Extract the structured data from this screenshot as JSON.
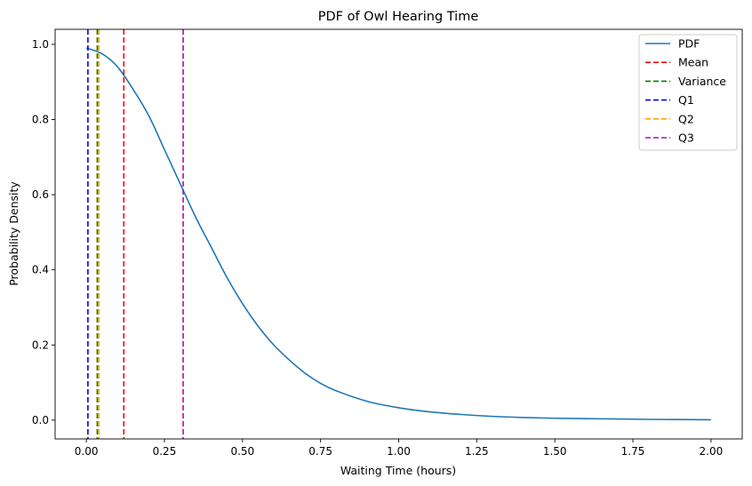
{
  "chart_data": {
    "type": "line",
    "title": "PDF of Owl Hearing Time",
    "xlabel": "Waiting Time (hours)",
    "ylabel": "Probability Density",
    "xlim": [
      -0.1,
      2.1
    ],
    "ylim": [
      -0.05,
      1.04
    ],
    "xticks": [
      0.0,
      0.25,
      0.5,
      0.75,
      1.0,
      1.25,
      1.5,
      1.75,
      2.0
    ],
    "xtick_labels": [
      "0.00",
      "0.25",
      "0.50",
      "0.75",
      "1.00",
      "1.25",
      "1.50",
      "1.75",
      "2.00"
    ],
    "yticks": [
      0.0,
      0.2,
      0.4,
      0.6,
      0.8,
      1.0
    ],
    "ytick_labels": [
      "0.0",
      "0.2",
      "0.4",
      "0.6",
      "0.8",
      "1.0"
    ],
    "grid": false,
    "legend_position": "top-right",
    "series": [
      {
        "name": "PDF",
        "color": "#1f77b4",
        "style": "solid",
        "x": [
          0.0,
          0.05,
          0.1,
          0.15,
          0.2,
          0.25,
          0.3,
          0.35,
          0.4,
          0.45,
          0.5,
          0.55,
          0.6,
          0.65,
          0.7,
          0.75,
          0.8,
          0.9,
          1.0,
          1.1,
          1.2,
          1.3,
          1.4,
          1.5,
          1.6,
          1.7,
          1.8,
          1.9,
          2.0
        ],
        "y": [
          0.99,
          0.975,
          0.94,
          0.88,
          0.81,
          0.72,
          0.63,
          0.54,
          0.46,
          0.38,
          0.31,
          0.25,
          0.2,
          0.16,
          0.125,
          0.098,
          0.078,
          0.05,
          0.033,
          0.022,
          0.015,
          0.01,
          0.007,
          0.005,
          0.004,
          0.003,
          0.002,
          0.0015,
          0.001
        ]
      }
    ],
    "vlines": [
      {
        "name": "Mean",
        "x": 0.12,
        "color": "#ff0000"
      },
      {
        "name": "Variance",
        "x": 0.035,
        "color": "#008000"
      },
      {
        "name": "Q1",
        "x": 0.005,
        "color": "#0000ff"
      },
      {
        "name": "Q2",
        "x": 0.04,
        "color": "#ffa500"
      },
      {
        "name": "Q3",
        "x": 0.31,
        "color": "#bf00bf"
      }
    ]
  }
}
